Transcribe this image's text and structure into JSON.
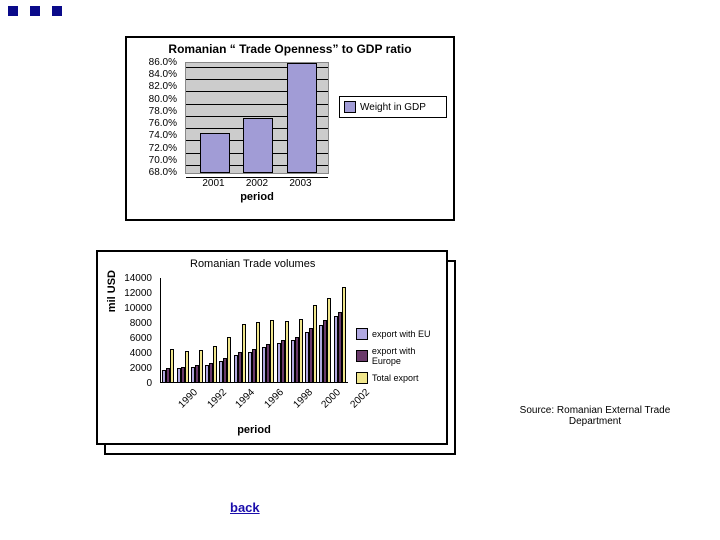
{
  "chart1": {
    "type": "bar",
    "title": "Romanian “ Trade Openness”  to GDP ratio",
    "axis_label": "period",
    "legend": {
      "label": "Weight in GDP",
      "swatch": "#a19cd6"
    },
    "ylim": [
      68.0,
      86.0
    ],
    "yticks": [
      "86.0%",
      "84.0%",
      "82.0%",
      "80.0%",
      "78.0%",
      "76.0%",
      "74.0%",
      "72.0%",
      "70.0%",
      "68.0%"
    ],
    "categories": [
      "2001",
      "2002",
      "2003"
    ],
    "values": [
      74.5,
      77.0,
      86.0
    ],
    "bar_color": "#a19cd6",
    "plot_bg": "#cccccc",
    "grid_color": "#000000",
    "title_fontsize": 12,
    "tick_fontsize": 10
  },
  "chart2": {
    "type": "bar-grouped",
    "title": "Romanian Trade volumes",
    "y_axis_label": "mil USD",
    "x_axis_label": "period",
    "ylim": [
      0,
      14000
    ],
    "yticks": [
      "14000",
      "12000",
      "10000",
      "8000",
      "6000",
      "4000",
      "2000",
      "0"
    ],
    "xticks": [
      "1990",
      "1992",
      "1994",
      "1996",
      "1998",
      "2000",
      "2002"
    ],
    "years": [
      "1990",
      "1991",
      "1992",
      "1993",
      "1994",
      "1995",
      "1996",
      "1997",
      "1998",
      "1999",
      "2000",
      "2001",
      "2002"
    ],
    "series": [
      {
        "name": "export with EU",
        "color": "#b0a8e0",
        "values": [
          1800,
          1950,
          2100,
          2400,
          3000,
          3800,
          4200,
          4800,
          5400,
          5800,
          6800,
          7800,
          8900
        ]
      },
      {
        "name": "export with Europe",
        "color": "#6a3a6a",
        "values": [
          2000,
          2200,
          2400,
          2700,
          3300,
          4200,
          4600,
          5200,
          5800,
          6200,
          7300,
          8400,
          9500
        ]
      },
      {
        "name": "Total export",
        "color": "#f0e68c",
        "values": [
          4500,
          4300,
          4400,
          4900,
          6100,
          7900,
          8100,
          8400,
          8300,
          8500,
          10400,
          11400,
          12800
        ]
      }
    ],
    "tick_fontsize": 10
  },
  "source_text": "Source: Romanian External Trade Department",
  "back_label": "back"
}
